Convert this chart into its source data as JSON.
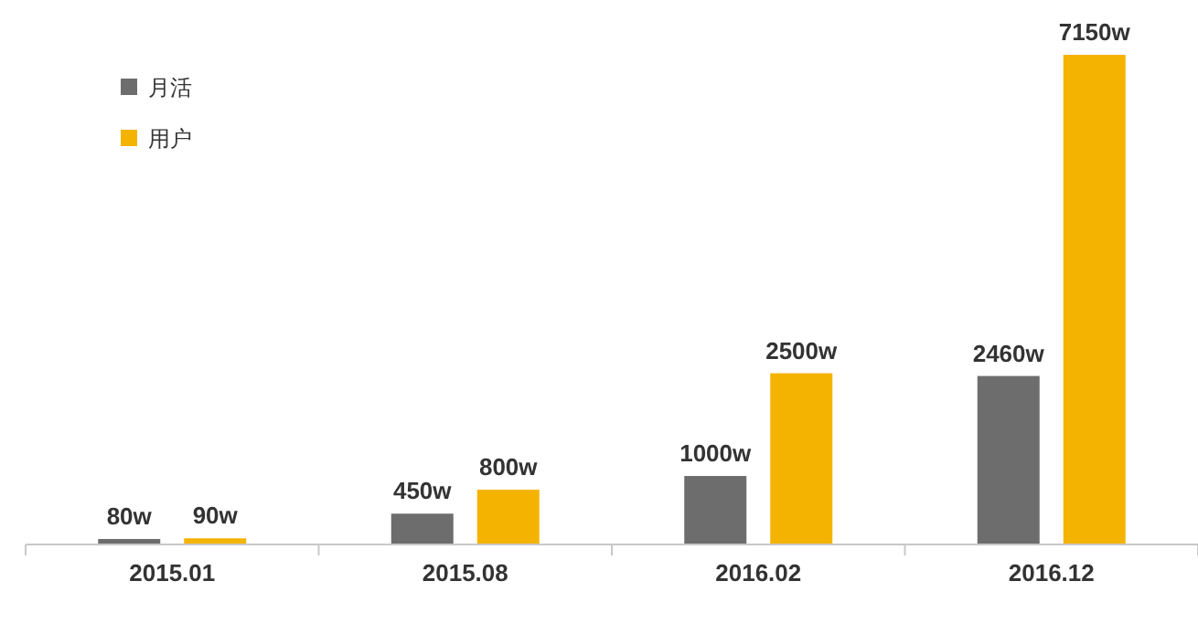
{
  "chart_data": {
    "type": "bar",
    "categories": [
      "2015.01",
      "2015.08",
      "2016.02",
      "2016.12"
    ],
    "series": [
      {
        "name": "月活",
        "color": "#6d6d6d",
        "values": [
          80,
          450,
          1000,
          2460
        ],
        "value_labels": [
          "80w",
          "450w",
          "1000w",
          "2460w"
        ]
      },
      {
        "name": "用户",
        "color": "#f5b301",
        "values": [
          90,
          800,
          2500,
          7150
        ],
        "value_labels": [
          "90w",
          "800w",
          "2500w",
          "7150w"
        ]
      }
    ],
    "legend": "top left",
    "grid": false
  }
}
